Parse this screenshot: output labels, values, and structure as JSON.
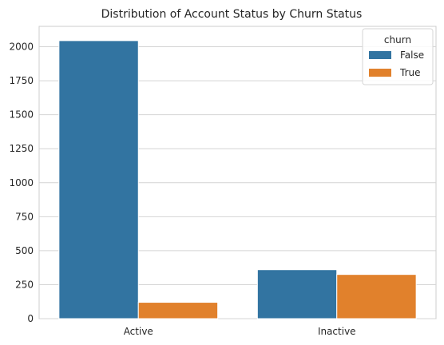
{
  "chart_data": {
    "type": "bar",
    "title": "Distribution of Account Status by Churn Status",
    "xlabel": "",
    "ylabel": "",
    "categories": [
      "Active",
      "Inactive"
    ],
    "series": [
      {
        "name": "False",
        "values": [
          2045,
          360
        ],
        "color": "#3274a1"
      },
      {
        "name": "True",
        "values": [
          120,
          325
        ],
        "color": "#e1812c"
      }
    ],
    "ylim": [
      0,
      2150
    ],
    "yticks": [
      0,
      250,
      500,
      750,
      1000,
      1250,
      1500,
      1750,
      2000
    ],
    "grid": "y",
    "legend": {
      "title": "churn",
      "placement": "top-right"
    }
  }
}
